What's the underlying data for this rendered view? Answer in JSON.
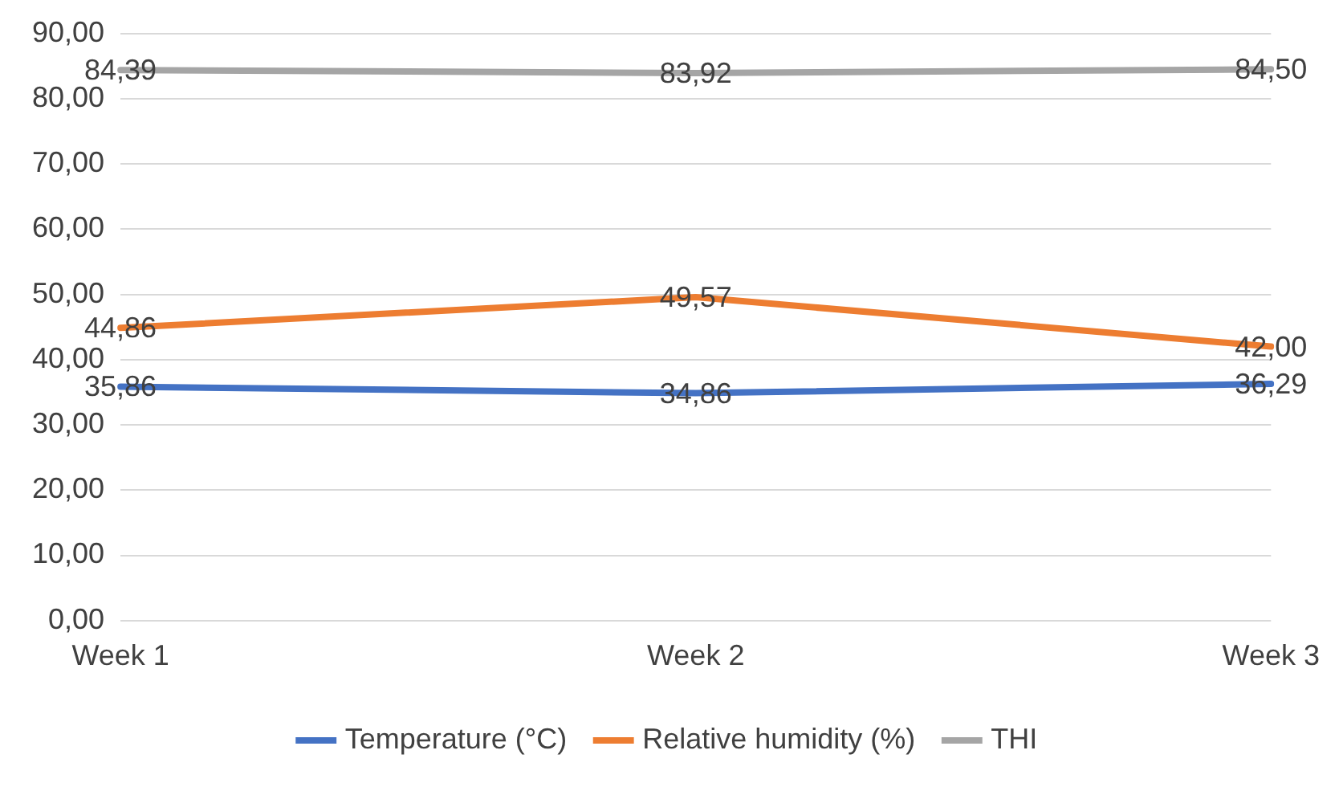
{
  "chart_data": {
    "type": "line",
    "categories": [
      "Week 1",
      "Week 2",
      "Week 3"
    ],
    "series": [
      {
        "name": "Temperature (°C)",
        "color": "#4472c4",
        "values": [
          35.86,
          34.86,
          36.29
        ],
        "value_labels": [
          "35,86",
          "34,86",
          "36,29"
        ]
      },
      {
        "name": "Relative humidity (%)",
        "color": "#ed7d31",
        "values": [
          44.86,
          49.57,
          42.0
        ],
        "value_labels": [
          "44,86",
          "49,57",
          "42,00"
        ]
      },
      {
        "name": "THI",
        "color": "#a5a5a5",
        "values": [
          84.39,
          83.92,
          84.5
        ],
        "value_labels": [
          "84,39",
          "83,92",
          "84,50"
        ]
      }
    ],
    "ylim": [
      0,
      90
    ],
    "yticks": [
      {
        "value": 0,
        "label": "0,00"
      },
      {
        "value": 10,
        "label": "10,00"
      },
      {
        "value": 20,
        "label": "20,00"
      },
      {
        "value": 30,
        "label": "30,00"
      },
      {
        "value": 40,
        "label": "40,00"
      },
      {
        "value": 50,
        "label": "50,00"
      },
      {
        "value": 60,
        "label": "60,00"
      },
      {
        "value": 70,
        "label": "70,00"
      },
      {
        "value": 80,
        "label": "80,00"
      },
      {
        "value": 90,
        "label": "90,00"
      }
    ],
    "grid": "y",
    "legend": "bottom",
    "marker": "none",
    "line_style": "solid"
  }
}
